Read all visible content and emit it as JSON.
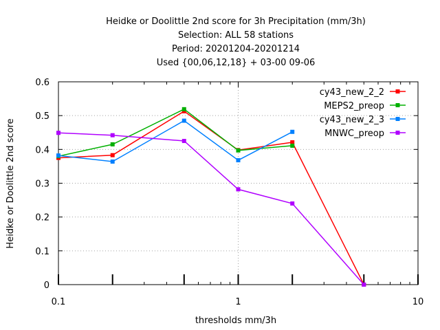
{
  "chart_data": {
    "type": "line",
    "title_lines": [
      "Heidke or Doolittle 2nd score  for 3h Precipitation (mm/3h)",
      "Selection: ALL      58 stations",
      "Period: 20201204-20201214",
      "Used {00,06,12,18} + 03-00 09-06"
    ],
    "xlabel": "thresholds mm/3h",
    "ylabel": "Heidke or Doolittle 2nd score",
    "x_scale": "log",
    "xlim": [
      0.1,
      10
    ],
    "ylim": [
      0,
      0.6
    ],
    "x_ticks": [
      0.1,
      1,
      10
    ],
    "x_tick_labels": [
      "0.1",
      "1",
      "10"
    ],
    "y_ticks": [
      0,
      0.1,
      0.2,
      0.3,
      0.4,
      0.5,
      0.6
    ],
    "y_tick_labels": [
      "0",
      "0.1",
      "0.2",
      "0.3",
      "0.4",
      "0.5",
      "0.6"
    ],
    "grid": true,
    "legend_position": "top-right",
    "series": [
      {
        "name": "cy43_new_2_2",
        "color": "#ff0000",
        "x": [
          0.1,
          0.2,
          0.5,
          1,
          2,
          5
        ],
        "y": [
          0.375,
          0.383,
          0.513,
          0.398,
          0.421,
          0.0
        ]
      },
      {
        "name": "MEPS2_preop",
        "color": "#00b000",
        "x": [
          0.1,
          0.2,
          0.5,
          1,
          2
        ],
        "y": [
          0.38,
          0.415,
          0.519,
          0.397,
          0.411
        ]
      },
      {
        "name": "cy43_new_2_3",
        "color": "#0080ff",
        "x": [
          0.1,
          0.2,
          0.5,
          1,
          2
        ],
        "y": [
          0.382,
          0.364,
          0.485,
          0.368,
          0.452
        ]
      },
      {
        "name": "MNWC_preop",
        "color": "#b000ff",
        "x": [
          0.1,
          0.2,
          0.5,
          1,
          2,
          5
        ],
        "y": [
          0.449,
          0.442,
          0.425,
          0.282,
          0.24,
          0.0
        ]
      }
    ]
  }
}
